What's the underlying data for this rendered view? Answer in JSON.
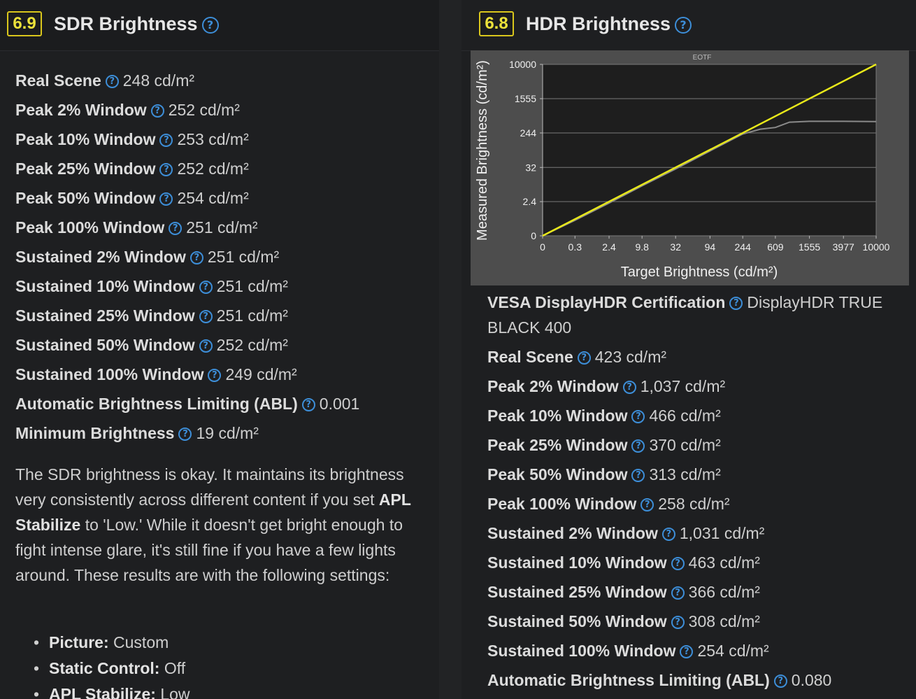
{
  "sdr": {
    "score": "6.9",
    "title": "SDR Brightness",
    "rows": [
      {
        "label": "Real Scene",
        "value": "248 cd/m²"
      },
      {
        "label": "Peak 2% Window",
        "value": "252 cd/m²"
      },
      {
        "label": "Peak 10% Window",
        "value": "253 cd/m²"
      },
      {
        "label": "Peak 25% Window",
        "value": "252 cd/m²"
      },
      {
        "label": "Peak 50% Window",
        "value": "254 cd/m²"
      },
      {
        "label": "Peak 100% Window",
        "value": "251 cd/m²"
      },
      {
        "label": "Sustained 2% Window",
        "value": "251 cd/m²"
      },
      {
        "label": "Sustained 10% Window",
        "value": "251 cd/m²"
      },
      {
        "label": "Sustained 25% Window",
        "value": "251 cd/m²"
      },
      {
        "label": "Sustained 50% Window",
        "value": "252 cd/m²"
      },
      {
        "label": "Sustained 100% Window",
        "value": "249 cd/m²"
      },
      {
        "label": "Automatic Brightness Limiting (ABL)",
        "value": "0.001"
      },
      {
        "label": "Minimum Brightness",
        "value": "19 cd/m²"
      }
    ],
    "paragraph": {
      "part1": "The SDR brightness is okay. It maintains its brightness very consistently across different content if you set ",
      "bold": "APL Stabilize",
      "part2": " to 'Low.' While it doesn't get bright enough to fight intense glare, it's still fine if you have a few lights around. These results are with the following settings:"
    },
    "settings": [
      {
        "label": "Picture:",
        "value": "Custom"
      },
      {
        "label": "Static Control:",
        "value": "Off"
      },
      {
        "label": "APL Stabilize:",
        "value": "Low"
      }
    ]
  },
  "hdr": {
    "score": "6.8",
    "title": "HDR Brightness",
    "vesa": {
      "label": "VESA DisplayHDR Certification",
      "value": "DisplayHDR TRUE BLACK 400"
    },
    "rows": [
      {
        "label": "Real Scene",
        "value": "423 cd/m²"
      },
      {
        "label": "Peak 2% Window",
        "value": "1,037 cd/m²"
      },
      {
        "label": "Peak 10% Window",
        "value": "466 cd/m²"
      },
      {
        "label": "Peak 25% Window",
        "value": "370 cd/m²"
      },
      {
        "label": "Peak 50% Window",
        "value": "313 cd/m²"
      },
      {
        "label": "Peak 100% Window",
        "value": "258 cd/m²"
      },
      {
        "label": "Sustained 2% Window",
        "value": "1,031 cd/m²"
      },
      {
        "label": "Sustained 10% Window",
        "value": "463 cd/m²"
      },
      {
        "label": "Sustained 25% Window",
        "value": "366 cd/m²"
      },
      {
        "label": "Sustained 50% Window",
        "value": "308 cd/m²"
      },
      {
        "label": "Sustained 100% Window",
        "value": "254 cd/m²"
      },
      {
        "label": "Automatic Brightness Limiting (ABL)",
        "value": "0.080"
      }
    ]
  },
  "help_glyph": "?",
  "colors": {
    "background": "#1e1f21",
    "score_accent": "#d9c61c",
    "help_icon": "#3d8ed8",
    "target_line": "#e8e81a",
    "measured_line": "#8a8a8a"
  },
  "chart_data": {
    "type": "line",
    "title": "EOTF",
    "xlabel": "Target Brightness (cd/m²)",
    "ylabel": "Measured Brightness (cd/m²)",
    "x_ticks": [
      "0",
      "0.3",
      "2.4",
      "9.8",
      "32",
      "94",
      "244",
      "609",
      "1555",
      "3977",
      "10000"
    ],
    "y_ticks": [
      "0",
      "2.4",
      "32",
      "244",
      "1555",
      "10000"
    ],
    "scale": "PQ (perceptual)",
    "grid": true,
    "series": [
      {
        "role": "target",
        "color": "#e8e81a",
        "x": [
          0,
          10000
        ],
        "y": [
          0,
          10000
        ]
      },
      {
        "role": "measured",
        "color": "#8a8a8a",
        "x": [
          0,
          0.3,
          2.4,
          9.8,
          32,
          94,
          244,
          400,
          609,
          900,
          1555,
          3977,
          10000
        ],
        "y": [
          0,
          0.25,
          2.1,
          9,
          29,
          88,
          230,
          300,
          330,
          440,
          460,
          460,
          455
        ]
      }
    ]
  }
}
